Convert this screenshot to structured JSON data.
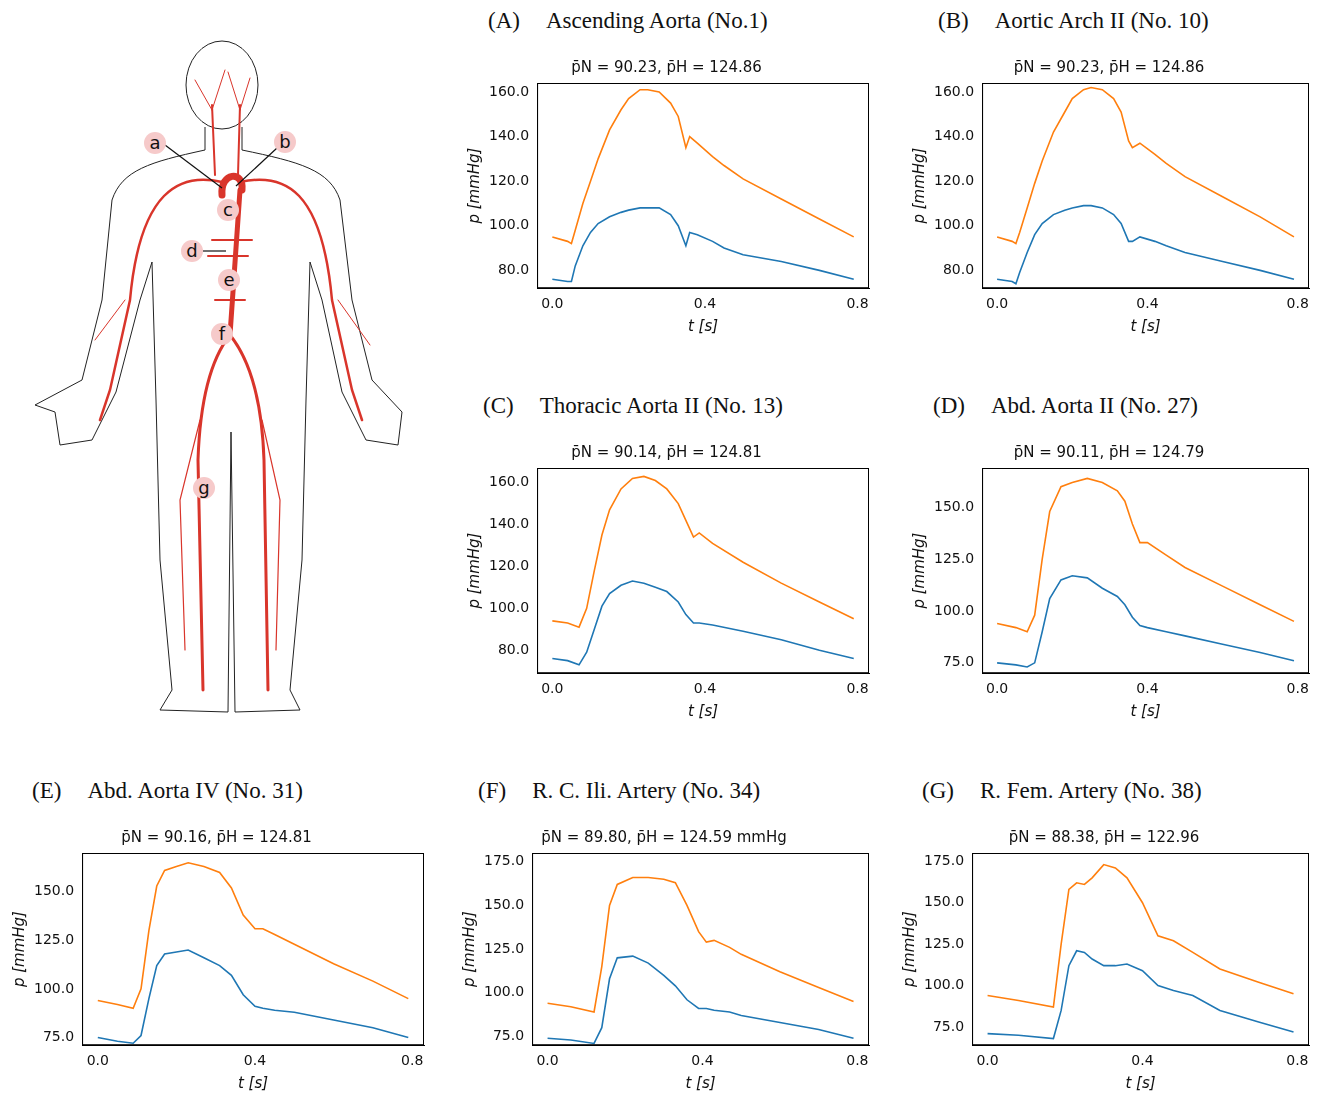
{
  "diagram": {
    "labels": [
      "a",
      "b",
      "c",
      "d",
      "e",
      "f",
      "g"
    ]
  },
  "chart_data": [
    {
      "type": "line",
      "panel_label": "(A)",
      "title": "Ascending Aorta (No.1)",
      "subtitle": "p̄N = 90.23, p̄H = 124.86",
      "x_label": "t [s]",
      "y_label": "p [mmHg]",
      "grid": false,
      "xlim": [
        -0.04,
        0.83
      ],
      "xticks": [
        {
          "value": 0,
          "label": "0.0"
        },
        0.4,
        0.8
      ],
      "ylim": [
        72,
        164
      ],
      "yticks": [
        {
          "value": 80,
          "label": "80.0"
        },
        {
          "value": 100,
          "label": "100.0"
        },
        {
          "value": 120,
          "label": "120.0"
        },
        {
          "value": 140,
          "label": "140.0"
        },
        {
          "value": 160,
          "label": "160.0"
        }
      ],
      "x": [
        0,
        0.04,
        0.05,
        0.06,
        0.08,
        0.1,
        0.12,
        0.15,
        0.18,
        0.2,
        0.23,
        0.25,
        0.28,
        0.31,
        0.33,
        0.35,
        0.36,
        0.38,
        0.42,
        0.45,
        0.5,
        0.6,
        0.7,
        0.79
      ],
      "series": [
        {
          "color": "#1f77b4",
          "values": [
            76,
            75,
            75,
            82,
            91,
            97,
            101,
            104,
            106,
            107,
            108,
            108,
            108,
            105,
            100,
            91,
            97,
            96,
            93,
            90,
            87,
            84,
            80,
            76
          ]
        },
        {
          "color": "#ff7f0e",
          "values": [
            95,
            93,
            92,
            98,
            110,
            120,
            130,
            143,
            152,
            157,
            161,
            161,
            160,
            155,
            149,
            135,
            140,
            137,
            131,
            127,
            121,
            112,
            103,
            95
          ]
        }
      ]
    },
    {
      "type": "line",
      "panel_label": "(B)",
      "title": "Aortic Arch II (No. 10)",
      "subtitle": "p̄N = 90.23, p̄H = 124.86",
      "x_label": "t [s]",
      "y_label": "p [mmHg]",
      "grid": false,
      "xlim": [
        -0.04,
        0.83
      ],
      "xticks": [
        {
          "value": 0,
          "label": "0.0"
        },
        0.4,
        0.8
      ],
      "ylim": [
        72,
        164
      ],
      "yticks": [
        {
          "value": 80,
          "label": "80.0"
        },
        {
          "value": 100,
          "label": "100.0"
        },
        {
          "value": 120,
          "label": "120.0"
        },
        {
          "value": 140,
          "label": "140.0"
        },
        {
          "value": 160,
          "label": "160.0"
        }
      ],
      "x": [
        0,
        0.04,
        0.05,
        0.06,
        0.08,
        0.1,
        0.12,
        0.15,
        0.18,
        0.2,
        0.23,
        0.25,
        0.28,
        0.31,
        0.33,
        0.35,
        0.36,
        0.38,
        0.42,
        0.45,
        0.5,
        0.6,
        0.7,
        0.79
      ],
      "series": [
        {
          "color": "#1f77b4",
          "values": [
            76,
            75,
            74,
            79,
            88,
            96,
            101,
            105,
            107,
            108,
            109,
            109,
            108,
            105,
            101,
            93,
            93,
            95,
            93,
            91,
            88,
            84,
            80,
            76
          ]
        },
        {
          "color": "#ff7f0e",
          "values": [
            95,
            93,
            92,
            97,
            108,
            119,
            129,
            142,
            151,
            157,
            161,
            162,
            161,
            157,
            151,
            138,
            135,
            137,
            132,
            128,
            122,
            113,
            104,
            95
          ]
        }
      ]
    },
    {
      "type": "line",
      "panel_label": "(C)",
      "title": "Thoracic Aorta II (No. 13)",
      "subtitle": "p̄N = 90.14, p̄H = 124.81",
      "x_label": "t [s]",
      "y_label": "p [mmHg]",
      "grid": false,
      "xlim": [
        -0.04,
        0.83
      ],
      "xticks": [
        {
          "value": 0,
          "label": "0.0"
        },
        0.4,
        0.8
      ],
      "ylim": [
        69,
        167
      ],
      "yticks": [
        {
          "value": 80,
          "label": "80.0"
        },
        {
          "value": 100,
          "label": "100.0"
        },
        {
          "value": 120,
          "label": "120.0"
        },
        {
          "value": 140,
          "label": "140.0"
        },
        {
          "value": 160,
          "label": "160.0"
        }
      ],
      "x": [
        0,
        0.04,
        0.07,
        0.09,
        0.11,
        0.13,
        0.15,
        0.18,
        0.21,
        0.24,
        0.27,
        0.3,
        0.33,
        0.35,
        0.37,
        0.385,
        0.42,
        0.5,
        0.6,
        0.7,
        0.79
      ],
      "series": [
        {
          "color": "#1f77b4",
          "values": [
            76,
            75,
            73,
            79,
            90,
            101,
            107,
            111,
            113,
            112,
            110,
            108,
            103,
            97,
            93,
            93,
            92,
            89,
            85,
            80,
            76
          ]
        },
        {
          "color": "#ff7f0e",
          "values": [
            94,
            93,
            91,
            100,
            118,
            135,
            147,
            157,
            162,
            163,
            161,
            157,
            150,
            142,
            134,
            136,
            131,
            122,
            112,
            103,
            95
          ]
        }
      ]
    },
    {
      "type": "line",
      "panel_label": "(D)",
      "title": "Abd. Aorta II (No. 27)",
      "subtitle": "p̄N = 90.11, p̄H = 124.79",
      "x_label": "t [s]",
      "y_label": "p [mmHg]",
      "grid": false,
      "xlim": [
        -0.04,
        0.83
      ],
      "xticks": [
        {
          "value": 0,
          "label": "0.0"
        },
        0.4,
        0.8
      ],
      "ylim": [
        70,
        169
      ],
      "yticks": [
        {
          "value": 75,
          "label": "75.0"
        },
        {
          "value": 100,
          "label": "100.0"
        },
        {
          "value": 125,
          "label": "125.0"
        },
        {
          "value": 150,
          "label": "150.0"
        }
      ],
      "x": [
        0,
        0.05,
        0.08,
        0.1,
        0.12,
        0.14,
        0.17,
        0.2,
        0.24,
        0.28,
        0.32,
        0.34,
        0.36,
        0.38,
        0.4,
        0.45,
        0.5,
        0.6,
        0.7,
        0.79
      ],
      "series": [
        {
          "color": "#1f77b4",
          "values": [
            75,
            74,
            73,
            75,
            90,
            106,
            115,
            117,
            116,
            111,
            107,
            103,
            97,
            93,
            92,
            90,
            88,
            84,
            80,
            76
          ]
        },
        {
          "color": "#ff7f0e",
          "values": [
            94,
            92,
            90,
            98,
            125,
            148,
            160,
            162,
            164,
            162,
            158,
            153,
            142,
            133,
            133,
            127,
            121,
            112,
            103,
            95
          ]
        }
      ]
    },
    {
      "type": "line",
      "panel_label": "(E)",
      "title": "Abd. Aorta IV (No. 31)",
      "subtitle": "p̄N = 90.16, p̄H = 124.81",
      "x_label": "t [s]",
      "y_label": "p [mmHg]",
      "grid": false,
      "xlim": [
        -0.04,
        0.83
      ],
      "xticks": [
        {
          "value": 0,
          "label": "0.0"
        },
        0.4,
        0.8
      ],
      "ylim": [
        71,
        170
      ],
      "yticks": [
        {
          "value": 75,
          "label": "75.0"
        },
        {
          "value": 100,
          "label": "100.0"
        },
        {
          "value": 125,
          "label": "125.0"
        },
        {
          "value": 150,
          "label": "150.0"
        }
      ],
      "x": [
        0,
        0.05,
        0.09,
        0.11,
        0.13,
        0.15,
        0.17,
        0.2,
        0.23,
        0.27,
        0.31,
        0.34,
        0.37,
        0.4,
        0.42,
        0.45,
        0.5,
        0.6,
        0.7,
        0.79
      ],
      "series": [
        {
          "color": "#1f77b4",
          "values": [
            75,
            73,
            72,
            76,
            95,
            112,
            118,
            119,
            120,
            116,
            112,
            107,
            97,
            91,
            90,
            89,
            88,
            84,
            80,
            75
          ]
        },
        {
          "color": "#ff7f0e",
          "values": [
            94,
            92,
            90,
            100,
            130,
            153,
            161,
            163,
            165,
            163,
            160,
            152,
            138,
            131,
            131,
            128,
            123,
            113,
            104,
            95
          ]
        }
      ]
    },
    {
      "type": "line",
      "panel_label": "(F)",
      "title": "R. C. Ili. Artery (No. 34)",
      "subtitle": "p̄N = 89.80, p̄H = 124.59 mmHg",
      "x_label": "t [s]",
      "y_label": "p [mmHg]",
      "grid": false,
      "xlim": [
        -0.04,
        0.83
      ],
      "xticks": [
        {
          "value": 0,
          "label": "0.0"
        },
        0.4,
        0.8
      ],
      "ylim": [
        70,
        180
      ],
      "yticks": [
        {
          "value": 75,
          "label": "75.0"
        },
        {
          "value": 100,
          "label": "100.0"
        },
        {
          "value": 125,
          "label": "125.0"
        },
        {
          "value": 150,
          "label": "150.0"
        },
        {
          "value": 175,
          "label": "175.0"
        }
      ],
      "x": [
        0,
        0.06,
        0.12,
        0.14,
        0.16,
        0.18,
        0.22,
        0.26,
        0.3,
        0.33,
        0.36,
        0.39,
        0.41,
        0.43,
        0.47,
        0.5,
        0.6,
        0.7,
        0.79
      ],
      "series": [
        {
          "color": "#1f77b4",
          "values": [
            74,
            73,
            71,
            80,
            108,
            120,
            121,
            117,
            110,
            104,
            96,
            91,
            91,
            90,
            89,
            87,
            83,
            79,
            74
          ]
        },
        {
          "color": "#ff7f0e",
          "values": [
            94,
            92,
            89,
            115,
            150,
            162,
            166,
            166,
            165,
            163,
            150,
            135,
            129,
            130,
            126,
            122,
            112,
            103,
            95
          ]
        }
      ]
    },
    {
      "type": "line",
      "panel_label": "(G)",
      "title": "R. Fem. Artery (No. 38)",
      "subtitle": "p̄N = 88.38, p̄H = 122.96",
      "x_label": "t [s]",
      "y_label": "p [mmHg]",
      "grid": false,
      "xlim": [
        -0.04,
        0.83
      ],
      "xticks": [
        {
          "value": 0,
          "label": "0.0"
        },
        0.4,
        0.8
      ],
      "ylim": [
        64,
        180
      ],
      "yticks": [
        {
          "value": 75,
          "label": "75.0"
        },
        {
          "value": 100,
          "label": "100.0"
        },
        {
          "value": 125,
          "label": "125.0"
        },
        {
          "value": 150,
          "label": "150.0"
        },
        {
          "value": 175,
          "label": "175.0"
        }
      ],
      "x": [
        0,
        0.08,
        0.17,
        0.19,
        0.21,
        0.23,
        0.25,
        0.27,
        0.3,
        0.33,
        0.36,
        0.4,
        0.44,
        0.48,
        0.53,
        0.6,
        0.7,
        0.79
      ],
      "series": [
        {
          "color": "#1f77b4",
          "values": [
            71,
            70,
            68,
            85,
            112,
            121,
            120,
            116,
            112,
            112,
            113,
            109,
            100,
            97,
            94,
            85,
            78,
            72
          ]
        },
        {
          "color": "#ff7f0e",
          "values": [
            94,
            91,
            87,
            125,
            158,
            162,
            161,
            165,
            173,
            171,
            165,
            150,
            130,
            127,
            120,
            110,
            102,
            95
          ]
        }
      ]
    }
  ]
}
